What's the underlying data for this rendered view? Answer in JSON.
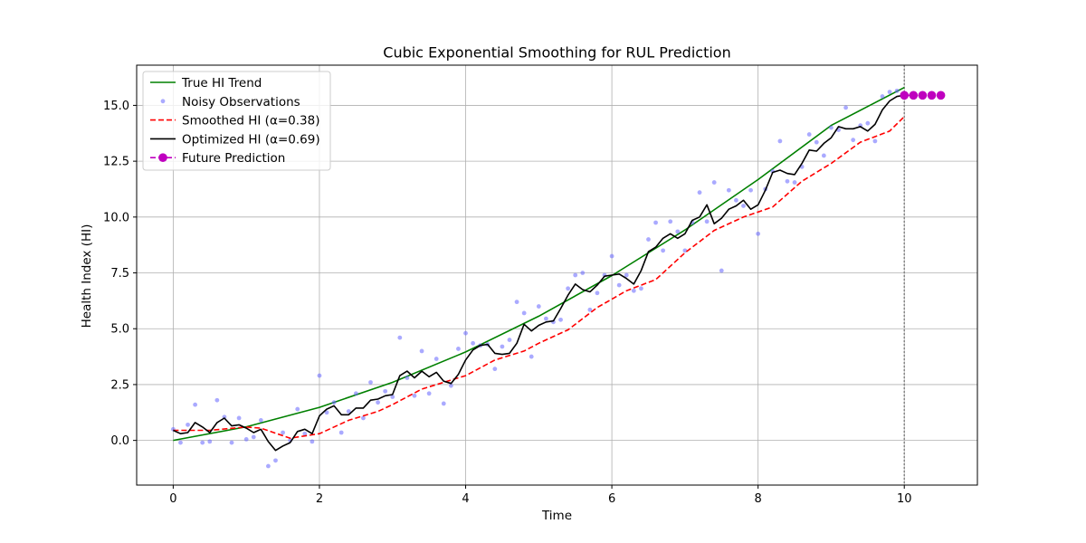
{
  "chart_data": {
    "type": "line",
    "title": "Cubic Exponential Smoothing for RUL Prediction",
    "xlabel": "Time",
    "ylabel": "Health Index (HI)",
    "xlim": [
      -0.5,
      11.0
    ],
    "ylim": [
      -2.0,
      16.8
    ],
    "x_ticks": [
      0,
      2,
      4,
      6,
      8,
      10
    ],
    "x_tick_labels": [
      "0",
      "2",
      "4",
      "6",
      "8",
      "10"
    ],
    "y_ticks": [
      0.0,
      2.5,
      5.0,
      7.5,
      10.0,
      12.5,
      15.0
    ],
    "y_tick_labels": [
      "0.0",
      "2.5",
      "5.0",
      "7.5",
      "10.0",
      "12.5",
      "15.0"
    ],
    "grid": true,
    "legend_position": "top-left",
    "current_time_marker": 10,
    "series": [
      {
        "name": "True HI Trend",
        "style": "solid",
        "color": "#008000",
        "x": [
          0,
          1,
          2,
          3,
          4,
          5,
          6,
          7,
          8,
          9,
          10
        ],
        "y": [
          0.0,
          0.61,
          1.48,
          2.6,
          3.96,
          5.56,
          7.38,
          9.42,
          11.68,
          14.1,
          15.8
        ]
      },
      {
        "name": "Noisy Observations",
        "style": "points",
        "color": "#6464ff",
        "x": [
          0.0,
          0.1,
          0.2,
          0.3,
          0.4,
          0.5,
          0.6,
          0.7,
          0.8,
          0.9,
          1.0,
          1.1,
          1.2,
          1.3,
          1.4,
          1.5,
          1.6,
          1.7,
          1.8,
          1.9,
          2.0,
          2.1,
          2.2,
          2.3,
          2.4,
          2.5,
          2.6,
          2.7,
          2.8,
          2.9,
          3.0,
          3.1,
          3.2,
          3.3,
          3.4,
          3.5,
          3.6,
          3.7,
          3.8,
          3.9,
          4.0,
          4.1,
          4.2,
          4.3,
          4.4,
          4.5,
          4.6,
          4.7,
          4.8,
          4.9,
          5.0,
          5.1,
          5.2,
          5.3,
          5.4,
          5.5,
          5.6,
          5.7,
          5.8,
          5.9,
          6.0,
          6.1,
          6.2,
          6.3,
          6.4,
          6.5,
          6.6,
          6.7,
          6.8,
          6.9,
          7.0,
          7.1,
          7.2,
          7.3,
          7.4,
          7.5,
          7.6,
          7.7,
          7.8,
          7.9,
          8.0,
          8.1,
          8.2,
          8.3,
          8.4,
          8.5,
          8.6,
          8.7,
          8.8,
          8.9,
          9.0,
          9.1,
          9.2,
          9.3,
          9.4,
          9.5,
          9.6,
          9.7,
          9.8,
          9.9
        ],
        "y": [
          0.5,
          -0.1,
          0.7,
          1.6,
          -0.1,
          -0.05,
          1.8,
          1.05,
          -0.1,
          1.0,
          0.05,
          0.15,
          0.9,
          -1.15,
          -0.9,
          0.35,
          0.0,
          1.4,
          0.3,
          -0.05,
          2.9,
          1.25,
          1.7,
          0.35,
          1.3,
          2.1,
          1.0,
          2.6,
          1.7,
          2.2,
          1.95,
          4.6,
          2.8,
          2.0,
          4.0,
          2.1,
          3.65,
          1.65,
          2.45,
          4.1,
          4.8,
          4.35,
          4.25,
          4.3,
          3.2,
          4.2,
          4.5,
          6.2,
          5.7,
          3.75,
          6.0,
          5.45,
          5.3,
          5.4,
          6.8,
          7.4,
          7.5,
          5.85,
          6.6,
          7.4,
          8.25,
          6.95,
          7.4,
          6.7,
          6.8,
          9.0,
          9.75,
          8.5,
          9.8,
          9.35,
          8.5,
          9.75,
          11.1,
          9.8,
          11.55,
          7.6,
          11.2,
          10.75,
          10.5,
          11.2,
          9.25,
          11.25,
          12.05,
          13.4,
          11.6,
          11.55,
          12.25,
          13.7,
          13.35,
          12.75,
          14.0,
          13.9,
          14.9,
          13.45,
          14.1,
          14.2,
          13.4,
          15.4,
          15.6,
          15.65
        ]
      },
      {
        "name": "Smoothed HI (α=0.38)",
        "style": "dashed",
        "color": "#ff0000",
        "x": [
          0.0,
          0.5,
          1.0,
          1.2,
          1.6,
          2.0,
          2.4,
          2.8,
          3.0,
          3.4,
          3.8,
          4.0,
          4.4,
          4.8,
          5.0,
          5.4,
          5.8,
          6.2,
          6.6,
          7.0,
          7.4,
          7.8,
          8.2,
          8.6,
          9.0,
          9.4,
          9.8,
          10.0
        ],
        "y": [
          0.45,
          0.45,
          0.6,
          0.55,
          0.1,
          0.3,
          0.9,
          1.3,
          1.6,
          2.3,
          2.7,
          2.9,
          3.6,
          4.0,
          4.35,
          4.95,
          5.95,
          6.7,
          7.2,
          8.4,
          9.4,
          10.0,
          10.45,
          11.6,
          12.4,
          13.35,
          13.85,
          14.5
        ]
      },
      {
        "name": "Optimized HI (α=0.69)",
        "style": "solid",
        "color": "#000000",
        "x": [
          0.0,
          0.1,
          0.2,
          0.3,
          0.4,
          0.5,
          0.6,
          0.7,
          0.8,
          0.9,
          1.0,
          1.1,
          1.2,
          1.3,
          1.4,
          1.5,
          1.6,
          1.7,
          1.8,
          1.9,
          2.0,
          2.1,
          2.2,
          2.3,
          2.4,
          2.5,
          2.6,
          2.7,
          2.8,
          2.9,
          3.0,
          3.1,
          3.2,
          3.3,
          3.4,
          3.5,
          3.6,
          3.7,
          3.8,
          3.9,
          4.0,
          4.1,
          4.2,
          4.3,
          4.4,
          4.5,
          4.6,
          4.7,
          4.8,
          4.9,
          5.0,
          5.1,
          5.2,
          5.3,
          5.4,
          5.5,
          5.6,
          5.7,
          5.8,
          5.9,
          6.0,
          6.1,
          6.2,
          6.3,
          6.4,
          6.5,
          6.6,
          6.7,
          6.8,
          6.9,
          7.0,
          7.1,
          7.2,
          7.3,
          7.4,
          7.5,
          7.6,
          7.7,
          7.8,
          7.9,
          8.0,
          8.1,
          8.2,
          8.3,
          8.4,
          8.5,
          8.6,
          8.7,
          8.8,
          8.9,
          9.0,
          9.1,
          9.2,
          9.3,
          9.4,
          9.5,
          9.6,
          9.7,
          9.8,
          9.9,
          10.0
        ],
        "y": [
          0.45,
          0.3,
          0.35,
          0.8,
          0.6,
          0.35,
          0.8,
          1.0,
          0.65,
          0.7,
          0.55,
          0.35,
          0.5,
          -0.05,
          -0.45,
          -0.25,
          -0.1,
          0.4,
          0.5,
          0.3,
          1.1,
          1.4,
          1.55,
          1.15,
          1.15,
          1.45,
          1.45,
          1.8,
          1.85,
          2.0,
          2.05,
          2.9,
          3.1,
          2.8,
          3.1,
          2.85,
          3.05,
          2.65,
          2.55,
          2.95,
          3.6,
          4.05,
          4.25,
          4.3,
          3.9,
          3.85,
          3.9,
          4.35,
          5.2,
          4.9,
          5.15,
          5.3,
          5.35,
          5.9,
          6.5,
          7.0,
          6.75,
          6.65,
          6.95,
          7.35,
          7.4,
          7.45,
          7.25,
          7.0,
          7.6,
          8.45,
          8.65,
          9.05,
          9.25,
          9.05,
          9.25,
          9.85,
          10.0,
          10.55,
          9.7,
          9.95,
          10.35,
          10.5,
          10.75,
          10.35,
          10.55,
          11.2,
          12.0,
          12.1,
          11.95,
          11.9,
          12.4,
          13.0,
          12.95,
          13.3,
          13.55,
          14.05,
          13.95,
          13.95,
          14.05,
          13.85,
          14.15,
          14.8,
          15.2,
          15.4,
          15.45
        ]
      },
      {
        "name": "Future Prediction",
        "style": "dashed-markers",
        "color": "#bf00bf",
        "x": [
          10.0,
          10.125,
          10.25,
          10.375,
          10.5
        ],
        "y": [
          15.45,
          15.45,
          15.45,
          15.45,
          15.45
        ]
      }
    ]
  }
}
